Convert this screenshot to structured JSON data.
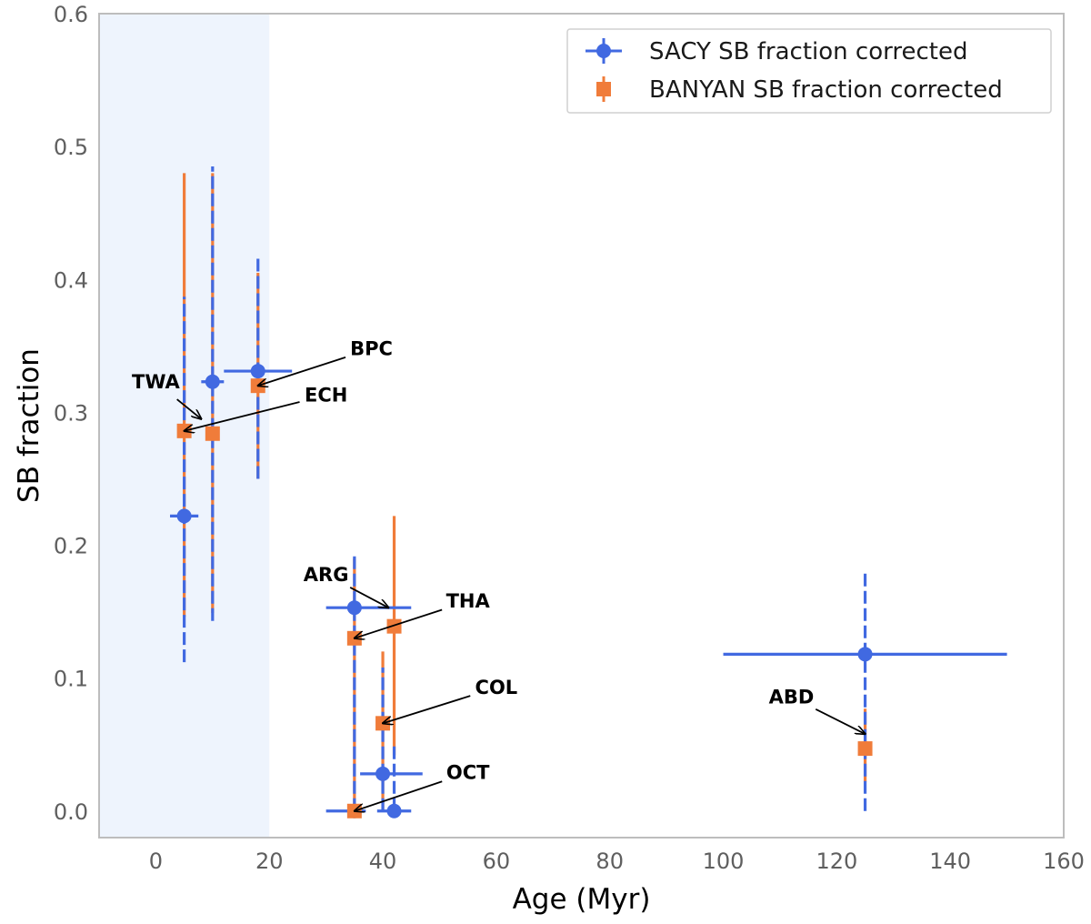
{
  "chart_data": {
    "type": "scatter",
    "xlabel": "Age (Myr)",
    "ylabel": "SB fraction",
    "xlim": [
      -10,
      160
    ],
    "ylim": [
      -0.02,
      0.6
    ],
    "xticks": [
      "0",
      "20",
      "40",
      "60",
      "80",
      "100",
      "120",
      "140",
      "160"
    ],
    "yticks": [
      "0.0",
      "0.1",
      "0.2",
      "0.3",
      "0.4",
      "0.5",
      "0.6"
    ],
    "grid": false,
    "shaded_region": {
      "x_from": -10,
      "x_to": 20,
      "color": "#eef4fd"
    },
    "legend": {
      "position": "top-right",
      "entries": [
        "SACY SB fraction corrected",
        "BANYAN SB fraction corrected"
      ]
    },
    "series": [
      {
        "name": "SACY SB fraction corrected",
        "color": "#4169e1",
        "marker": "circle",
        "points": [
          {
            "x": 5,
            "y": 0.222,
            "xerr": [
              2.5,
              2.5
            ],
            "yerr": [
              0.11,
              0.165
            ]
          },
          {
            "x": 10,
            "y": 0.323,
            "xerr": [
              2.0,
              2.0
            ],
            "yerr": [
              0.18,
              0.162
            ]
          },
          {
            "x": 18,
            "y": 0.331,
            "xerr": [
              6.0,
              6.0
            ],
            "yerr": [
              0.081,
              0.086
            ]
          },
          {
            "x": 35,
            "y": 0.153,
            "xerr": [
              5.0,
              10.0
            ],
            "yerr": [
              0.153,
              0.042
            ]
          },
          {
            "x": 40,
            "y": 0.028,
            "xerr": [
              4.0,
              7.0
            ],
            "yerr": [
              0.028,
              0.08
            ]
          },
          {
            "x": 35,
            "y": 0.0,
            "xerr": [
              5.0,
              2.0
            ],
            "yerr": [
              0.0,
              0.005
            ]
          },
          {
            "x": 42,
            "y": 0.0,
            "xerr": [
              3.0,
              3.0
            ],
            "yerr": [
              0.0,
              0.052
            ]
          },
          {
            "x": 125,
            "y": 0.118,
            "xerr": [
              25.0,
              25.0
            ],
            "yerr": [
              0.118,
              0.061
            ]
          }
        ]
      },
      {
        "name": "BANYAN SB fraction corrected",
        "color": "#f07c3a",
        "marker": "square",
        "points": [
          {
            "x": 5,
            "y": 0.286,
            "yerr": [
              0.14,
              0.194
            ]
          },
          {
            "x": 10,
            "y": 0.284,
            "yerr": [
              0.135,
              0.196
            ]
          },
          {
            "x": 18,
            "y": 0.32,
            "yerr": [
              0.07,
              0.085
            ]
          },
          {
            "x": 35,
            "y": 0.13,
            "yerr": [
              0.13,
              0.06
            ]
          },
          {
            "x": 42,
            "y": 0.139,
            "yerr": [
              0.097,
              0.083
            ]
          },
          {
            "x": 40,
            "y": 0.066,
            "yerr": [
              0.066,
              0.054
            ]
          },
          {
            "x": 35,
            "y": 0.0,
            "yerr": [
              0.0,
              0.0
            ]
          },
          {
            "x": 125,
            "y": 0.047,
            "yerr": [
              0.025,
              0.03
            ]
          }
        ]
      }
    ],
    "annotations": [
      {
        "text": "TWA",
        "x": 8,
        "y": 0.295,
        "text_x": 0,
        "text_y": 0.318
      },
      {
        "text": "ECH",
        "x": 5,
        "y": 0.286,
        "text_x": 30,
        "text_y": 0.308
      },
      {
        "text": "BPC",
        "x": 18,
        "y": 0.32,
        "text_x": 38,
        "text_y": 0.343
      },
      {
        "text": "ARG",
        "x": 41,
        "y": 0.153,
        "text_x": 30,
        "text_y": 0.173
      },
      {
        "text": "THA",
        "x": 35,
        "y": 0.13,
        "text_x": 55,
        "text_y": 0.153
      },
      {
        "text": "COL",
        "x": 40,
        "y": 0.066,
        "text_x": 60,
        "text_y": 0.088
      },
      {
        "text": "OCT",
        "x": 35,
        "y": 0.0,
        "text_x": 55,
        "text_y": 0.024
      },
      {
        "text": "ABD",
        "x": 125,
        "y": 0.058,
        "text_x": 112,
        "text_y": 0.081
      }
    ]
  }
}
